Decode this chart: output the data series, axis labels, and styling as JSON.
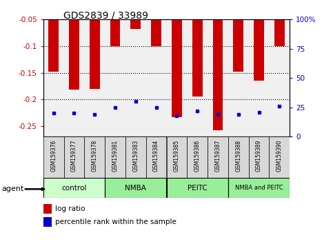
{
  "title": "GDS2839 / 33989",
  "samples": [
    "GSM159376",
    "GSM159377",
    "GSM159378",
    "GSM159381",
    "GSM159383",
    "GSM159384",
    "GSM159385",
    "GSM159386",
    "GSM159387",
    "GSM159388",
    "GSM159389",
    "GSM159390"
  ],
  "log_ratio": [
    -0.148,
    -0.182,
    -0.18,
    -0.1,
    -0.068,
    -0.1,
    -0.233,
    -0.194,
    -0.258,
    -0.148,
    -0.165,
    -0.1
  ],
  "percentile_rank": [
    20,
    20,
    19,
    25,
    30,
    25,
    18,
    22,
    19,
    19,
    21,
    26
  ],
  "bar_color": "#cc0000",
  "dot_color": "#0000cc",
  "ylim_left": [
    -0.27,
    -0.05
  ],
  "ylim_right": [
    0,
    100
  ],
  "yticks_left": [
    -0.25,
    -0.2,
    -0.15,
    -0.1,
    -0.05
  ],
  "yticks_right": [
    0,
    25,
    50,
    75,
    100
  ],
  "ylabel_right_labels": [
    "0",
    "25",
    "50",
    "75",
    "100%"
  ],
  "groups": [
    {
      "label": "control",
      "start": 0,
      "end": 3,
      "color": "#ccffcc"
    },
    {
      "label": "NMBA",
      "start": 3,
      "end": 6,
      "color": "#99ee99"
    },
    {
      "label": "PEITC",
      "start": 6,
      "end": 9,
      "color": "#99ee99"
    },
    {
      "label": "NMBA and PEITC",
      "start": 9,
      "end": 12,
      "color": "#99ee99"
    }
  ],
  "legend_items": [
    {
      "label": "log ratio",
      "color": "#cc0000"
    },
    {
      "label": "percentile rank within the sample",
      "color": "#0000cc"
    }
  ],
  "agent_label": "agent",
  "bg_color": "#ffffff",
  "plot_bg_color": "#f0f0f0",
  "tick_label_color_left": "#cc0000",
  "tick_label_color_right": "#0000cc",
  "title_color": "#000000",
  "sample_box_color": "#d8d8d8"
}
